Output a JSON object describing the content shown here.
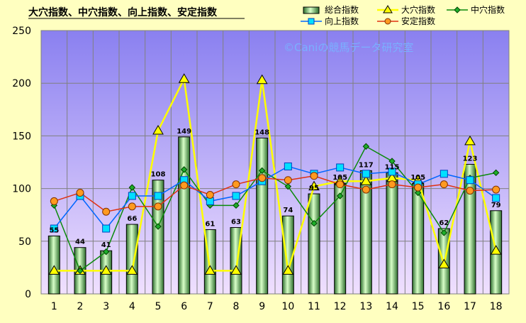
{
  "chart_data": {
    "type": "bar",
    "title": "大穴指数、中穴指数、向上指数、安定指数",
    "watermark": "©Caniの競馬データ研究室",
    "categories": [
      "1",
      "2",
      "3",
      "4",
      "5",
      "6",
      "7",
      "8",
      "9",
      "10",
      "11",
      "12",
      "13",
      "14",
      "15",
      "16",
      "17",
      "18"
    ],
    "ylim": [
      0,
      250
    ],
    "yticks": [
      "0",
      "50",
      "100",
      "150",
      "200",
      "250"
    ],
    "grid": true,
    "legend_position": "top-right",
    "bar_series": {
      "name": "総合指数",
      "values": [
        55,
        44,
        41,
        66,
        108,
        149,
        61,
        63,
        148,
        74,
        95,
        105,
        117,
        115,
        105,
        62,
        123,
        79
      ],
      "labels": [
        "55",
        "44",
        "41",
        "66",
        "108",
        "149",
        "61",
        "63",
        "148",
        "74",
        "95",
        "105",
        "117",
        "115",
        "105",
        "62",
        "123",
        "79"
      ],
      "color": "#b8f0a0"
    },
    "series": [
      {
        "name": "大穴指数",
        "type": "line",
        "marker": "triangle",
        "color": "#ffff00",
        "values": [
          22,
          22,
          22,
          22,
          155,
          204,
          22,
          22,
          203,
          22,
          102,
          107,
          107,
          110,
          108,
          28,
          145,
          41
        ]
      },
      {
        "name": "中穴指数",
        "type": "line",
        "marker": "diamond",
        "color": "#0a8a0a",
        "values": [
          84,
          22,
          40,
          101,
          64,
          118,
          84,
          84,
          117,
          102,
          67,
          93,
          140,
          126,
          96,
          58,
          110,
          115
        ]
      },
      {
        "name": "向上指数",
        "type": "line",
        "marker": "square",
        "color": "#0066ff",
        "values": [
          62,
          93,
          62,
          93,
          93,
          108,
          88,
          93,
          107,
          121,
          114,
          120,
          114,
          116,
          104,
          114,
          108,
          91
        ]
      },
      {
        "name": "安定指数",
        "type": "line",
        "marker": "circle",
        "color": "#e03010",
        "values": [
          88,
          96,
          78,
          83,
          83,
          103,
          94,
          104,
          110,
          108,
          112,
          104,
          99,
          104,
          101,
          104,
          98,
          99
        ]
      }
    ],
    "colors": {
      "plot_top": "#8a80f0",
      "plot_bottom": "#f0e0ff",
      "page_background": "#ffffc0"
    }
  }
}
